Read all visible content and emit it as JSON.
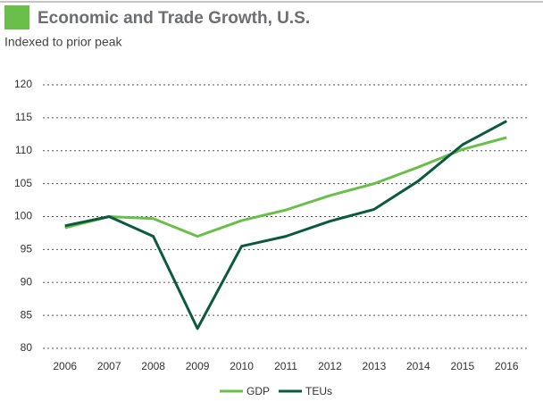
{
  "chart_data": {
    "type": "line",
    "title": "Economic and Trade Growth, U.S.",
    "subtitle": "Indexed to prior peak",
    "categories": [
      "2006",
      "2007",
      "2008",
      "2009",
      "2010",
      "2011",
      "2012",
      "2013",
      "2014",
      "2015",
      "2016"
    ],
    "series": [
      {
        "name": "GDP",
        "color": "#6abf4b",
        "values": [
          98.3,
          100,
          99.7,
          97,
          99.4,
          101,
          103.2,
          105,
          107.5,
          110.2,
          112
        ]
      },
      {
        "name": "TEUs",
        "color": "#0b5a3e",
        "values": [
          98.6,
          100,
          97,
          83,
          95.5,
          97,
          99.3,
          101.1,
          105.4,
          110.9,
          114.5
        ]
      }
    ],
    "ylim": [
      80,
      120
    ],
    "yticks": [
      80,
      85,
      90,
      95,
      100,
      105,
      110,
      115,
      120
    ],
    "grid": true,
    "legend": "bottom"
  }
}
